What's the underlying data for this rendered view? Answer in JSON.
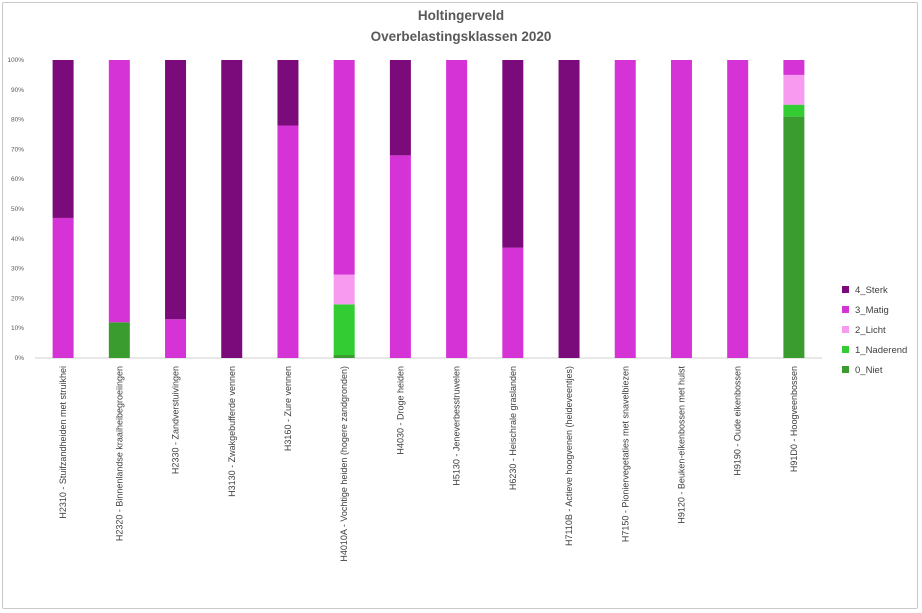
{
  "chart_data": {
    "type": "bar",
    "stacked": true,
    "percent": true,
    "title": "Holtingerveld",
    "subtitle": "Overbelastingsklassen 2020",
    "ylim": [
      0,
      100
    ],
    "yticks": [
      "0%",
      "10%",
      "20%",
      "30%",
      "40%",
      "50%",
      "60%",
      "70%",
      "80%",
      "90%",
      "100%"
    ],
    "legend_position": "right",
    "grid": false,
    "categories": [
      "H2310 - Stuifzandheiden met struikhei",
      "H2320 - Binnenlandse kraaiheibegroeiingen",
      "H2330 - Zandverstuivingen",
      "H3130 - Zwakgebufferde vennen",
      "H3160 - Zure vennen",
      "H4010A - Vochtige heiden (hogere zandgronden)",
      "H4030 - Droge heiden",
      "H5130 - Jeneverbesstruwelen",
      "H6230 - Heischrale graslanden",
      "H7110B - Actieve hoogvenen (heideveentjes)",
      "H7150 - Pioniervegetaties met snavelbiezen",
      "H9120 - Beuken-eikenbossen met hulst",
      "H9190 - Oude eikenbossen",
      "H91D0 - Hoogveenbossen"
    ],
    "series": [
      {
        "name": "0_Niet",
        "color": "#3a9c2e",
        "values": [
          0,
          12,
          0,
          0,
          0,
          1,
          0,
          0,
          0,
          0,
          0,
          0,
          0,
          81
        ]
      },
      {
        "name": "1_Naderend",
        "color": "#33cc33",
        "values": [
          0,
          0,
          0,
          0,
          0,
          17,
          0,
          0,
          0,
          0,
          0,
          0,
          0,
          4
        ]
      },
      {
        "name": "2_Licht",
        "color": "#f79af0",
        "values": [
          0,
          0,
          0,
          0,
          0,
          10,
          0,
          0,
          0,
          0,
          0,
          0,
          0,
          10
        ]
      },
      {
        "name": "3_Matig",
        "color": "#d633d6",
        "values": [
          47,
          88,
          13,
          0,
          78,
          72,
          68,
          100,
          37,
          0,
          100,
          100,
          100,
          5
        ]
      },
      {
        "name": "4_Sterk",
        "color": "#7b0a7b",
        "values": [
          53,
          0,
          87,
          100,
          22,
          0,
          32,
          0,
          63,
          100,
          0,
          0,
          0,
          0
        ]
      }
    ]
  }
}
